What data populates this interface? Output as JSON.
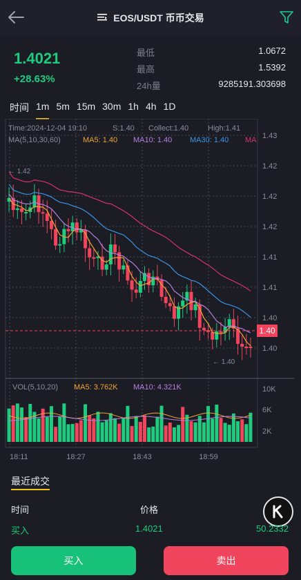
{
  "header": {
    "title": "EOS/USDT 币币交易",
    "back_icon": "back-arrow-icon",
    "menu_icon": "menu-icon",
    "filter_icon": "filter-icon"
  },
  "ticker": {
    "last_price": "1.4021",
    "change_pct": "+28.63%",
    "low_label": "最低",
    "low_value": "1.0672",
    "high_label": "最高",
    "high_value": "1.5392",
    "vol_label": "24h量",
    "vol_value": "9285191.303698"
  },
  "timeframes": [
    {
      "label": "时间",
      "active": false
    },
    {
      "label": "1m",
      "active": true
    },
    {
      "label": "5m",
      "active": false
    },
    {
      "label": "15m",
      "active": false
    },
    {
      "label": "30m",
      "active": false
    },
    {
      "label": "1h",
      "active": false
    },
    {
      "label": "4h",
      "active": false
    },
    {
      "label": "1D",
      "active": false
    }
  ],
  "chart_data": {
    "type": "candlestick",
    "info_line": {
      "time": "Time:2024-12-04 19:10",
      "start": "S:1.40",
      "collect": "Collect:1.40",
      "high": "High:1.41"
    },
    "ma_legend": [
      {
        "text": "MA(5,10,30,60)",
        "color": "#8b8e98"
      },
      {
        "text": "MA5: 1.40",
        "color": "#f0a43a"
      },
      {
        "text": "MA10: 1.40",
        "color": "#b681e0"
      },
      {
        "text": "MA30: 1.40",
        "color": "#3b95e8"
      },
      {
        "text": "MA",
        "color": "#d8336e"
      }
    ],
    "y_ticks": [
      "1.43",
      "1.42",
      "1.42",
      "1.42",
      "1.41",
      "1.41",
      "1.40",
      "1.40"
    ],
    "last_price_label": "1.40",
    "max_marker": "1.42",
    "min_marker": "1.40",
    "volume_legend": [
      {
        "text": "VOL(5,10,20)",
        "color": "#8b8e98"
      },
      {
        "text": "MA5: 3.762K",
        "color": "#f0a43a"
      },
      {
        "text": "MA10: 4.321K",
        "color": "#b681e0"
      }
    ],
    "volume_ticks": [
      "10K",
      "6K",
      "2K"
    ],
    "x_ticks": [
      "18:11",
      "18:27",
      "18:43",
      "18:59"
    ],
    "up_color": "#1fcb7e",
    "down_color": "#f0455c"
  },
  "recent_trades": {
    "title": "最近成交",
    "columns": [
      "时间",
      "价格"
    ],
    "rows": [
      {
        "side": "买入",
        "price": "1.4021",
        "amount": "50.2332"
      }
    ]
  },
  "actions": {
    "buy": "买入",
    "sell": "卖出"
  }
}
